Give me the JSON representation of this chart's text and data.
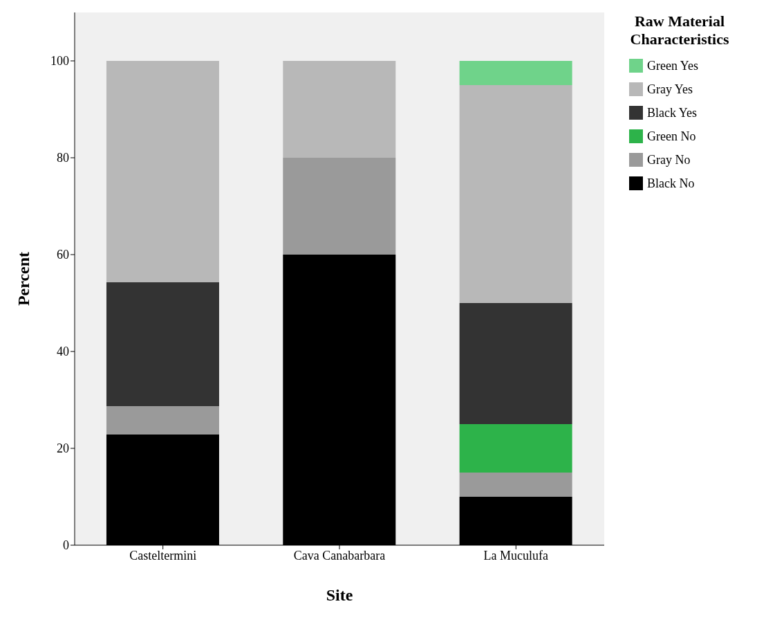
{
  "chart_data": {
    "type": "bar",
    "stacked": true,
    "xlabel": "Site",
    "ylabel": "Percent",
    "legend_title": "Raw Material Characteristics",
    "legend": "top right",
    "categories": [
      "Casteltermini",
      "Cava Canabarbara",
      "La Muculufa"
    ],
    "ylim": [
      0,
      110
    ],
    "yticks": [
      0,
      20,
      40,
      60,
      80,
      100
    ],
    "series": [
      {
        "name": "Black No",
        "color": "#000000",
        "values": [
          22.9,
          60,
          10
        ]
      },
      {
        "name": "Gray No",
        "color": "#9a9a9a",
        "values": [
          5.8,
          20,
          5
        ]
      },
      {
        "name": "Green No",
        "color": "#2db34a",
        "values": [
          0,
          0,
          10
        ]
      },
      {
        "name": "Black Yes",
        "color": "#333333",
        "values": [
          25.6,
          0,
          25
        ]
      },
      {
        "name": "Gray Yes",
        "color": "#b8b8b8",
        "values": [
          45.7,
          20,
          45
        ]
      },
      {
        "name": "Green Yes",
        "color": "#6fd38a",
        "values": [
          0,
          0,
          5
        ]
      }
    ]
  }
}
